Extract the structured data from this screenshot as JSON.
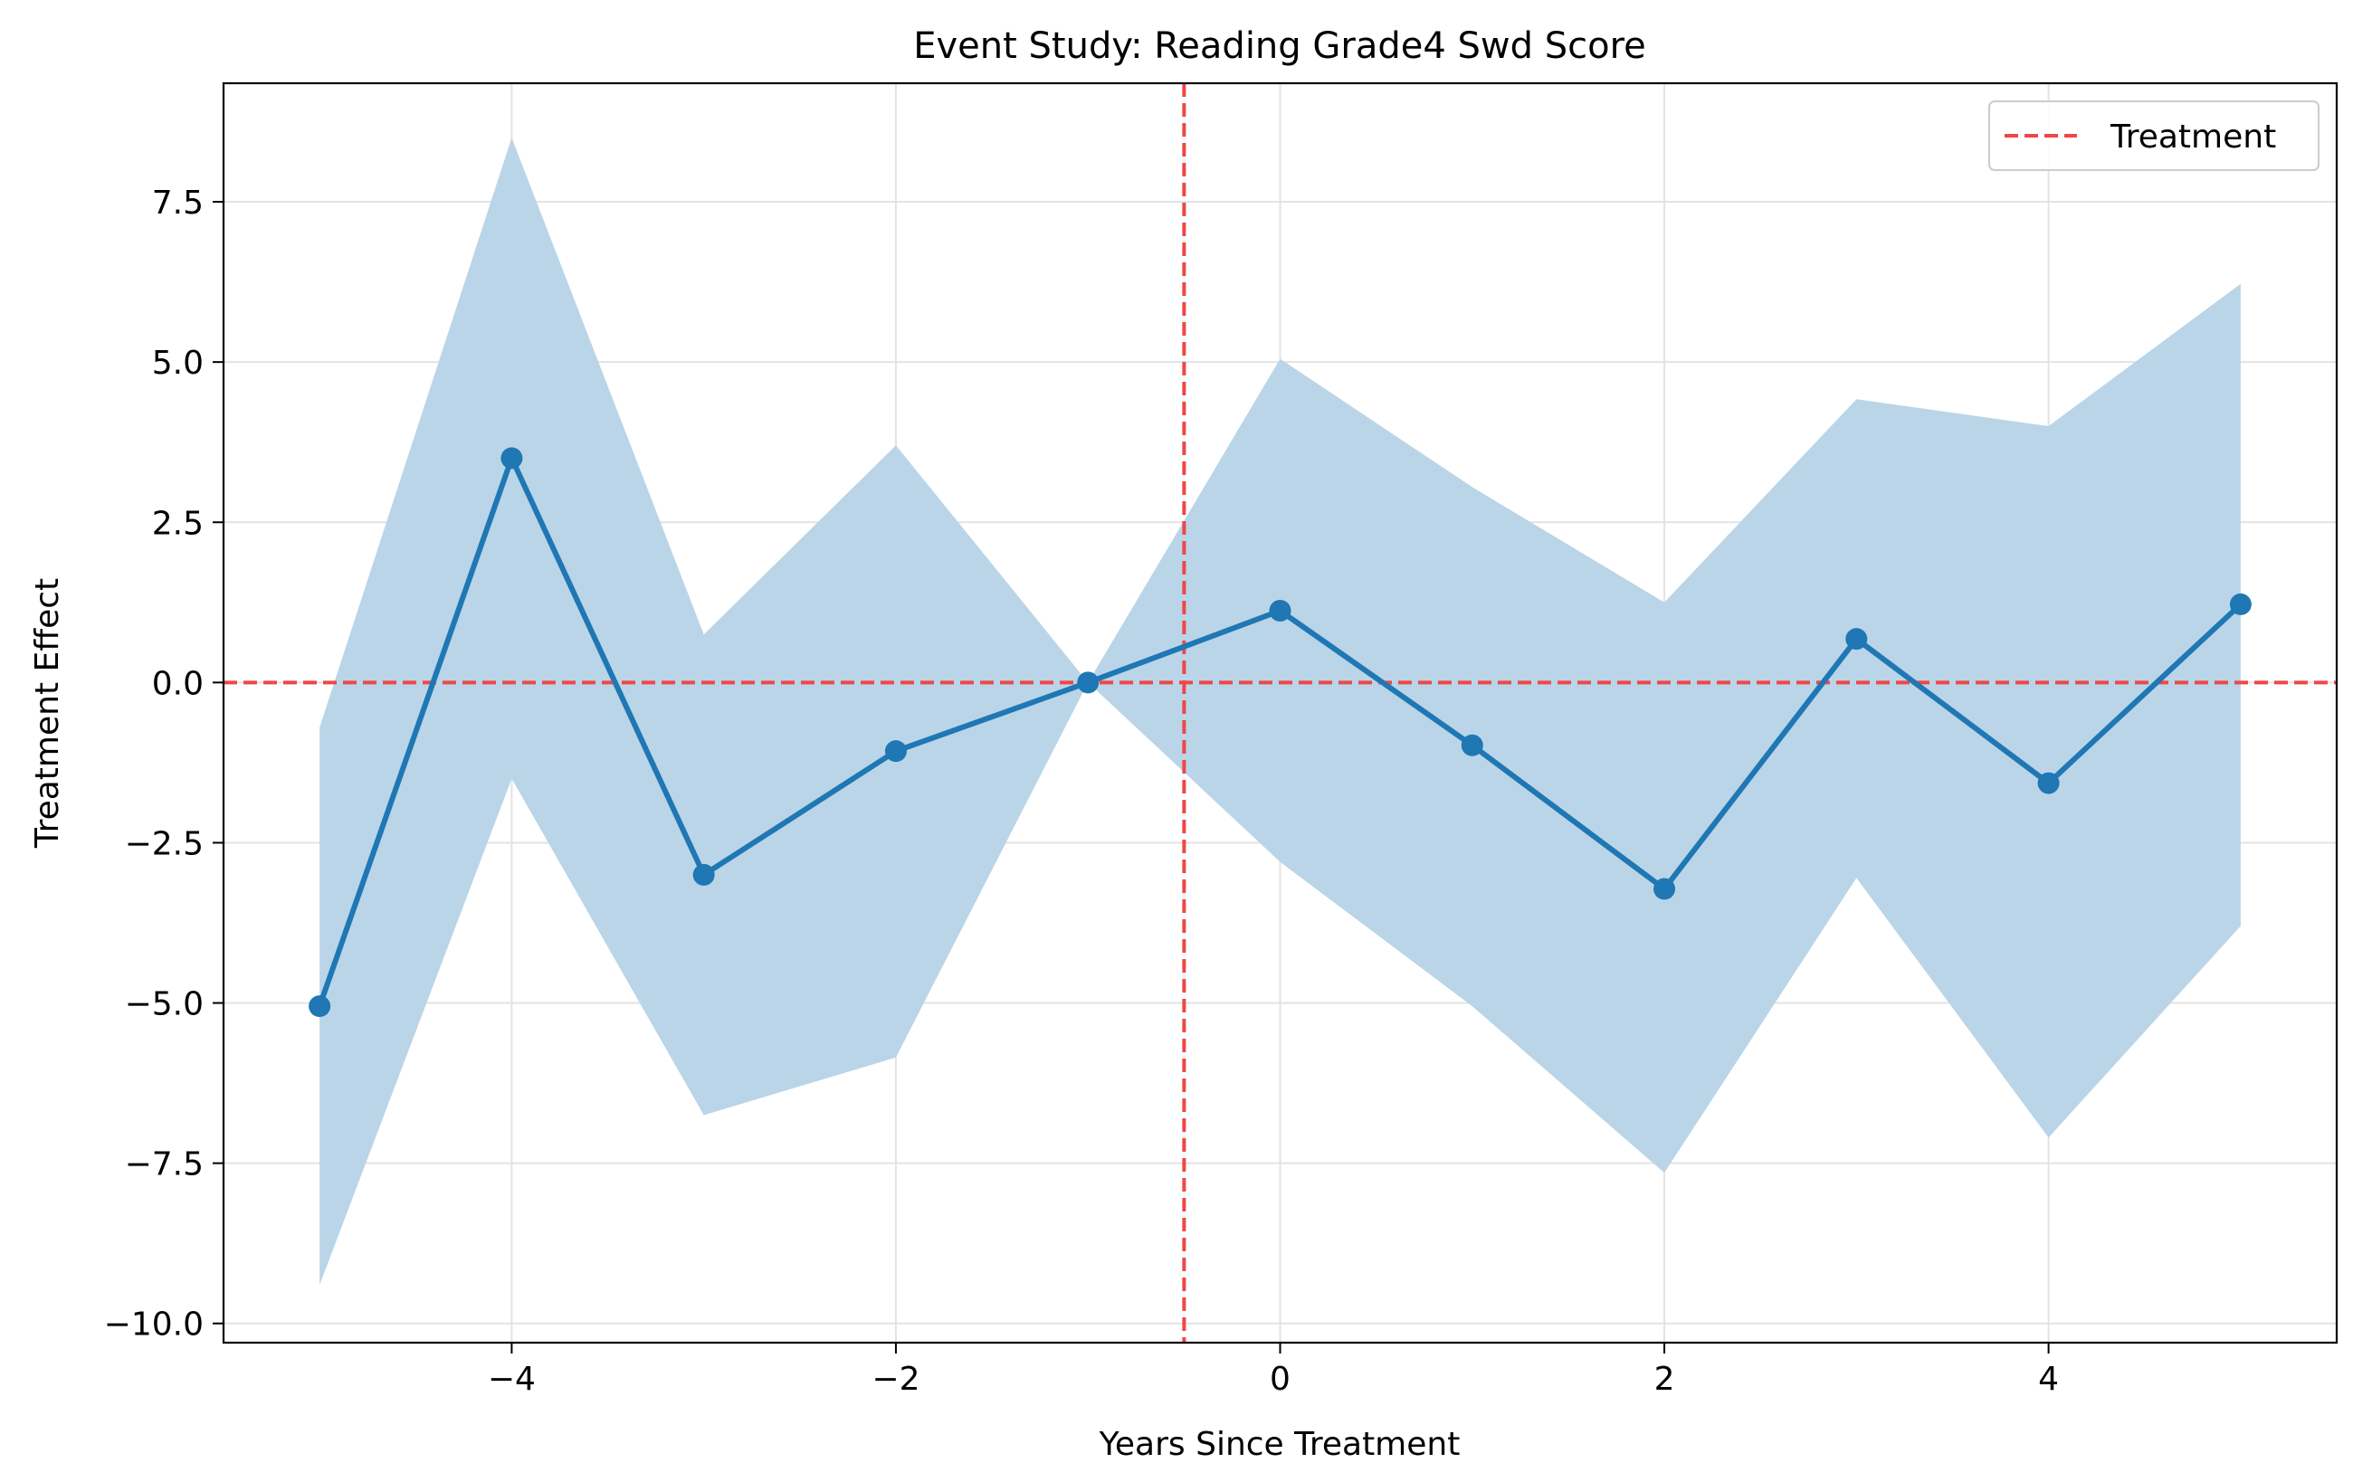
{
  "chart_data": {
    "type": "line",
    "title": "Event Study: Reading Grade4 Swd Score",
    "xlabel": "Years Since Treatment",
    "ylabel": "Treatment Effect",
    "xlim": [
      -5.5,
      5.5
    ],
    "ylim": [
      -10.3,
      9.35
    ],
    "xticks": [
      -4,
      -2,
      0,
      2,
      4
    ],
    "xtick_labels": [
      "−4",
      "−2",
      "0",
      "2",
      "4"
    ],
    "yticks": [
      -10,
      -7.5,
      -5,
      -2.5,
      0,
      2.5,
      5,
      7.5
    ],
    "ytick_labels": [
      "−10.0",
      "−7.5",
      "−5.0",
      "−2.5",
      "0.0",
      "2.5",
      "5.0",
      "7.5"
    ],
    "grid": true,
    "legend_position": "top-right",
    "legend": [
      {
        "label": "Treatment",
        "style": "dashed",
        "color": "#f04646"
      }
    ],
    "series": [
      {
        "x": [
          -5,
          -4,
          -3,
          -2,
          -1,
          0,
          1,
          2,
          3,
          4,
          5
        ],
        "values": [
          -5.05,
          3.5,
          -3.0,
          -1.07,
          0.0,
          1.12,
          -0.98,
          -3.22,
          0.68,
          -1.57,
          1.22
        ],
        "ci_lower": [
          -9.4,
          -1.5,
          -6.75,
          -5.85,
          0.0,
          -2.8,
          -5.05,
          -7.65,
          -3.05,
          -7.1,
          -3.8
        ],
        "ci_upper": [
          -0.7,
          8.5,
          0.75,
          3.7,
          0.0,
          5.05,
          3.05,
          1.25,
          4.42,
          4.0,
          6.22
        ],
        "color": "#1f77b4",
        "band_color": "#bad5e8"
      }
    ],
    "reference_lines": {
      "horizontal_y": 0,
      "vertical_x": -0.5,
      "color": "#f04646"
    }
  }
}
